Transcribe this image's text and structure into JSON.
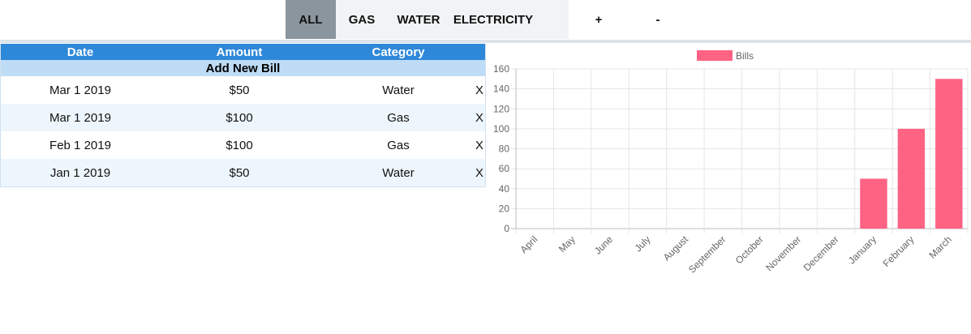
{
  "nav": {
    "tabs": [
      {
        "label": "ALL",
        "active": true
      },
      {
        "label": "GAS",
        "active": false
      },
      {
        "label": "WATER",
        "active": false
      },
      {
        "label": "ELECTRICITY",
        "active": false
      }
    ],
    "plus_label": "+",
    "minus_label": "-"
  },
  "table": {
    "headers": [
      "Date",
      "Amount",
      "Category"
    ],
    "add_label": "Add New Bill",
    "delete_label": "X",
    "rows": [
      {
        "date": "Mar 1 2019",
        "amount": "$50",
        "category": "Water"
      },
      {
        "date": "Mar 1 2019",
        "amount": "$100",
        "category": "Gas"
      },
      {
        "date": "Feb 1 2019",
        "amount": "$100",
        "category": "Gas"
      },
      {
        "date": "Jan 1 2019",
        "amount": "$50",
        "category": "Water"
      }
    ]
  },
  "colors": {
    "accent": "#2e88d9",
    "add_row": "#bfdcf7",
    "active_tab": "#8a959e",
    "bar": "#ff6384"
  },
  "chart_data": {
    "type": "bar",
    "categories": [
      "April",
      "May",
      "June",
      "July",
      "August",
      "September",
      "October",
      "November",
      "December",
      "January",
      "February",
      "March"
    ],
    "series": [
      {
        "name": "Bills",
        "values": [
          0,
          0,
          0,
          0,
          0,
          0,
          0,
          0,
          0,
          50,
          100,
          150
        ]
      }
    ],
    "ylim": [
      0,
      160
    ],
    "yticks": [
      0,
      20,
      40,
      60,
      80,
      100,
      120,
      140,
      160
    ],
    "grid": true,
    "legend": "top"
  }
}
